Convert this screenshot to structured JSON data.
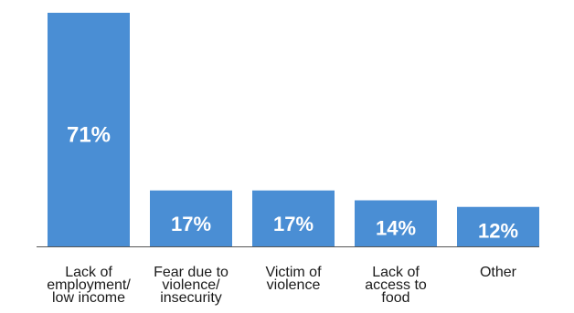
{
  "chart_data": {
    "type": "bar",
    "categories": [
      [
        "Lack of",
        "employment/",
        "low income"
      ],
      [
        "Fear due to",
        "violence/",
        "insecurity"
      ],
      [
        "Victim of",
        "violence"
      ],
      [
        "Lack of",
        "access to",
        "food"
      ],
      [
        "Other"
      ]
    ],
    "values": [
      71,
      17,
      17,
      14,
      12
    ],
    "value_labels": [
      "71%",
      "17%",
      "17%",
      "14%",
      "12%"
    ],
    "unit": "%",
    "ylim": [
      0,
      71
    ],
    "grid": false,
    "legend": "none",
    "bar_color": "#4a8ed4",
    "baseline_color": "#555555"
  }
}
